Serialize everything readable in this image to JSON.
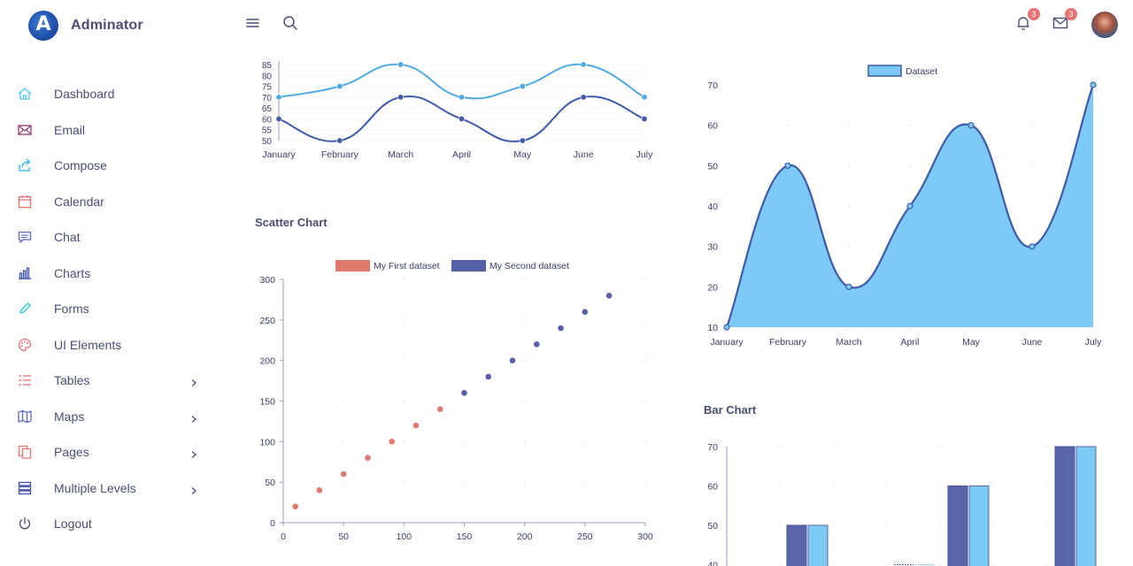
{
  "app": {
    "title": "Adminator",
    "logo_letter": "A"
  },
  "header": {
    "menu_icon": "hamburger-icon",
    "search_icon": "search-icon",
    "notifications": {
      "icon": "bell-icon",
      "count": "3"
    },
    "messages": {
      "icon": "mail-icon",
      "count": "3"
    },
    "avatar": "user-avatar"
  },
  "sidebar": {
    "items": [
      {
        "label": "Dashboard",
        "icon": "home-icon",
        "color": "#4fc3f7",
        "arrow": false
      },
      {
        "label": "Email",
        "icon": "mail-icon",
        "color": "#8e3b6c",
        "arrow": false
      },
      {
        "label": "Compose",
        "icon": "share-icon",
        "color": "#29b6f6",
        "arrow": false
      },
      {
        "label": "Calendar",
        "icon": "calendar-icon",
        "color": "#e57373",
        "arrow": false
      },
      {
        "label": "Chat",
        "icon": "chat-icon",
        "color": "#5c6bc0",
        "arrow": false
      },
      {
        "label": "Charts",
        "icon": "bar-chart-icon",
        "color": "#3f51b5",
        "arrow": false
      },
      {
        "label": "Forms",
        "icon": "pencil-icon",
        "color": "#26c6da",
        "arrow": false
      },
      {
        "label": "UI Elements",
        "icon": "palette-icon",
        "color": "#e57373",
        "arrow": false
      },
      {
        "label": "Tables",
        "icon": "list-icon",
        "color": "#e57373",
        "arrow": true
      },
      {
        "label": "Maps",
        "icon": "map-icon",
        "color": "#5c6bc0",
        "arrow": true
      },
      {
        "label": "Pages",
        "icon": "copy-icon",
        "color": "#e57373",
        "arrow": true
      },
      {
        "label": "Multiple Levels",
        "icon": "stack-icon",
        "color": "#3f51b5",
        "arrow": true
      },
      {
        "label": "Logout",
        "icon": "power-icon",
        "color": "#4a4f73",
        "arrow": false
      }
    ]
  },
  "sections": {
    "scatter_title": "Scatter Chart",
    "bar_title": "Bar Chart"
  },
  "chart_data": [
    {
      "id": "line",
      "type": "line",
      "categories": [
        "January",
        "February",
        "March",
        "April",
        "May",
        "June",
        "July"
      ],
      "yticks": [
        50,
        55,
        60,
        65,
        70,
        75,
        80,
        85
      ],
      "ylim": [
        50,
        85
      ],
      "series": [
        {
          "values": [
            70,
            75,
            85,
            70,
            75,
            85,
            70
          ],
          "color": "#4fa9e3"
        },
        {
          "values": [
            60,
            50,
            70,
            60,
            50,
            70,
            60
          ],
          "color": "#3f5aa8"
        }
      ]
    },
    {
      "id": "area",
      "type": "area",
      "categories": [
        "January",
        "February",
        "March",
        "April",
        "May",
        "June",
        "July"
      ],
      "yticks": [
        10,
        20,
        30,
        40,
        50,
        60,
        70
      ],
      "ylim": [
        10,
        70
      ],
      "legend": "top",
      "series": [
        {
          "name": "Dataset",
          "values": [
            10,
            50,
            20,
            40,
            60,
            30,
            70
          ],
          "fill": "#7ccaf5",
          "color": "#3f5aa8"
        }
      ]
    },
    {
      "id": "scatter",
      "type": "scatter",
      "xticks": [
        0,
        50,
        100,
        150,
        200,
        250,
        300
      ],
      "yticks": [
        0,
        50,
        100,
        150,
        200,
        250,
        300
      ],
      "xlim": [
        0,
        300
      ],
      "ylim": [
        0,
        300
      ],
      "legend": "top",
      "series": [
        {
          "name": "My First dataset",
          "color": "#e07a6e",
          "points": [
            [
              10,
              20
            ],
            [
              30,
              40
            ],
            [
              50,
              60
            ],
            [
              70,
              80
            ],
            [
              90,
              100
            ],
            [
              110,
              120
            ],
            [
              130,
              140
            ]
          ]
        },
        {
          "name": "My Second dataset",
          "color": "#5560a8",
          "points": [
            [
              150,
              160
            ],
            [
              170,
              180
            ],
            [
              190,
              200
            ],
            [
              210,
              220
            ],
            [
              230,
              240
            ],
            [
              250,
              260
            ],
            [
              270,
              280
            ]
          ]
        }
      ]
    },
    {
      "id": "bar",
      "type": "bar",
      "yticks": [
        40,
        50,
        60,
        70
      ],
      "ylim": [
        40,
        70
      ],
      "series": [
        {
          "color": "#5a64a8",
          "values": [
            50,
            40,
            60,
            70
          ]
        },
        {
          "color": "#7ccaf5",
          "values": [
            50,
            40,
            60,
            70
          ]
        }
      ]
    }
  ]
}
